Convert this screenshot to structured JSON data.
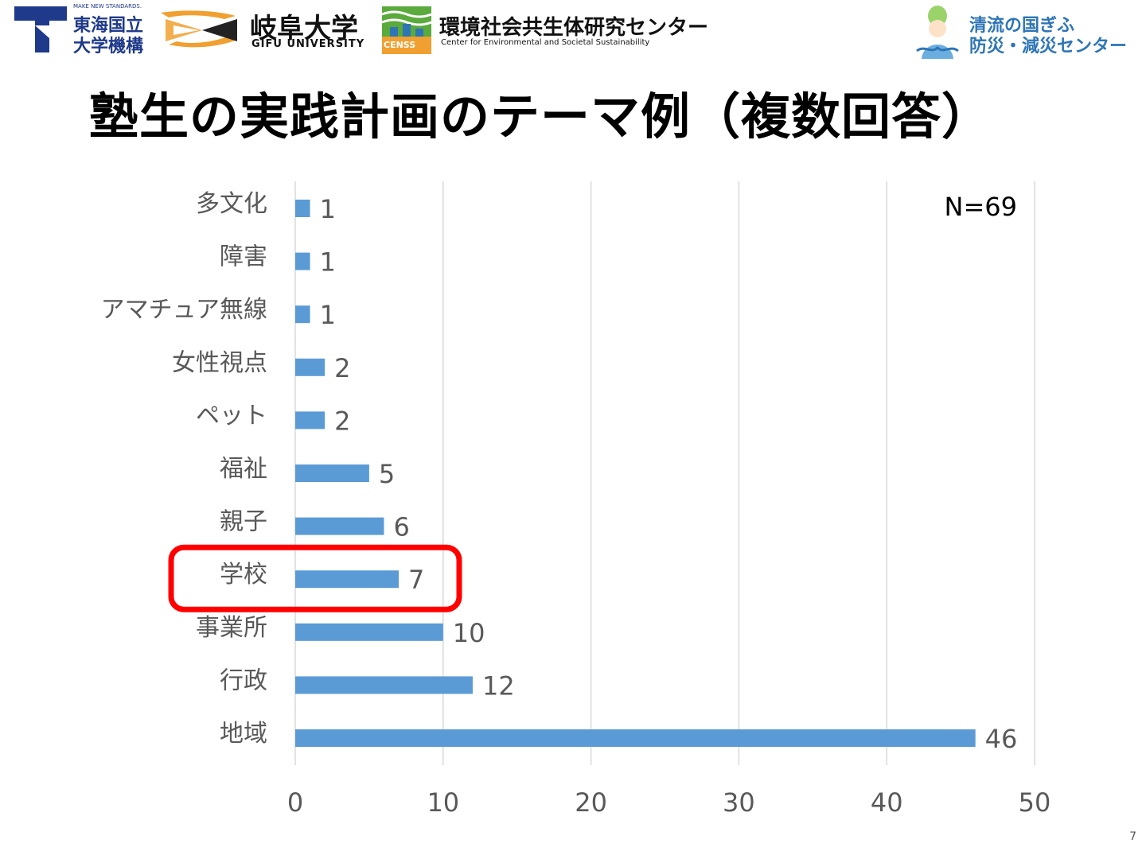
{
  "header": {
    "tokai_small": "MAKE NEW STANDARDS.",
    "tokai_line1": "東海国立",
    "tokai_line2": "大学機構",
    "gifu_name": "岐阜大学",
    "gifu_en": "GIFU UNIVERSITY",
    "censs_badge": "CENSS",
    "censs_name": "環境社会共生体研究センター",
    "censs_en": "Center for Environmental and Societal Sustainability",
    "center_line1": "清流の国ぎふ",
    "center_line2": "防災・減災センター"
  },
  "title": "塾生の実践計画のテーマ例（複数回答）",
  "page_number": "7",
  "colors": {
    "bar": "#5B9BD5",
    "grid": "#D9D9D9",
    "label_text": "#595959",
    "highlight": "#FF0000",
    "brand_navy": "#1F3A8A",
    "gifu_orange": "#F0A030",
    "censs_green": "#5AAA3C",
    "center_blue": "#2E75B6"
  },
  "chart_data": {
    "type": "bar",
    "orientation": "horizontal",
    "categories": [
      "多文化",
      "障害",
      "アマチュア無線",
      "女性視点",
      "ペット",
      "福祉",
      "親子",
      "学校",
      "事業所",
      "行政",
      "地域"
    ],
    "values": [
      1,
      1,
      1,
      2,
      2,
      5,
      6,
      7,
      10,
      12,
      46
    ],
    "data_labels": [
      "1",
      "1",
      "1",
      "2",
      "2",
      "5",
      "6",
      "7",
      "10",
      "12",
      "46"
    ],
    "xlim": [
      0,
      50
    ],
    "xticks": [
      0,
      10,
      20,
      30,
      40,
      50
    ],
    "tick_labels": [
      "0",
      "10",
      "20",
      "30",
      "40",
      "50"
    ],
    "grid": "vertical",
    "annotation": "N=69",
    "highlighted_category": "学校",
    "title": "",
    "xlabel": "",
    "ylabel": ""
  }
}
